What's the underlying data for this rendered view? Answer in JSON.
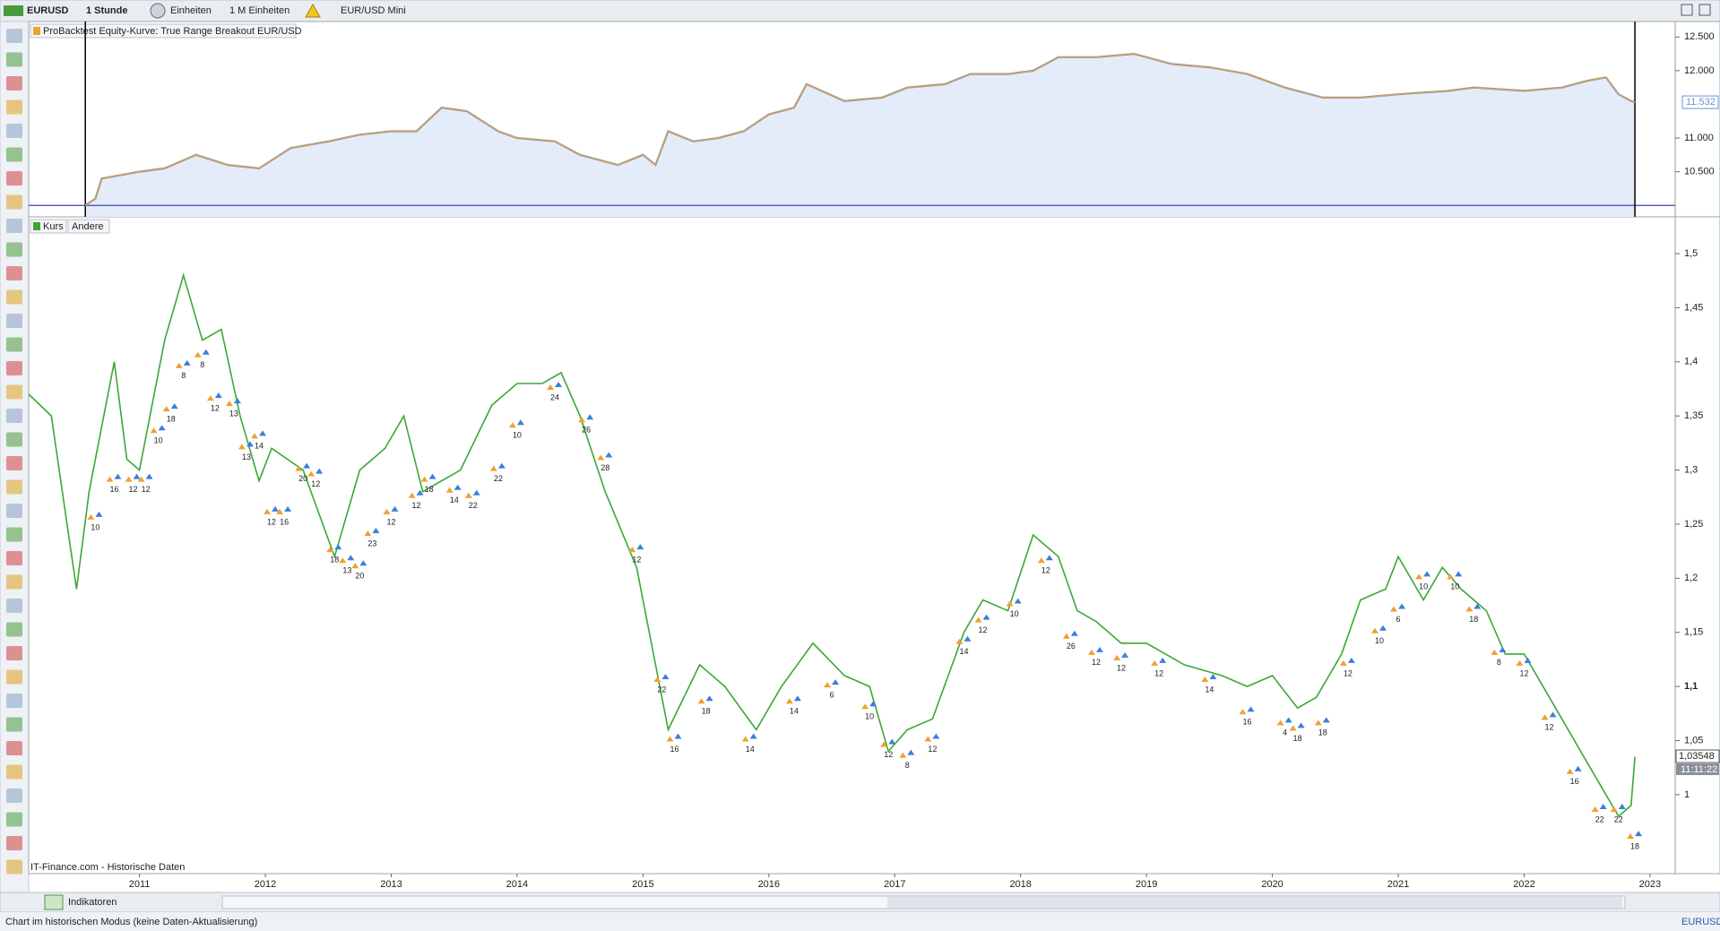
{
  "toolbar": {
    "symbol": "EURUSD",
    "interval": "1 Stunde",
    "units": "Einheiten",
    "amount": "1 M Einheiten",
    "instrument": "EUR/USD Mini"
  },
  "chart_data": [
    {
      "type": "line",
      "title": "ProBacktest Equity-Kurve: True Range Breakout EUR/USD",
      "color": "#f0a030",
      "fill": "#e4ecfa",
      "x": [
        2010.57,
        2010.65,
        2010.7,
        2010.85,
        2011.0,
        2011.2,
        2011.45,
        2011.7,
        2011.95,
        2012.2,
        2012.5,
        2012.75,
        2013.0,
        2013.2,
        2013.4,
        2013.6,
        2013.85,
        2014.0,
        2014.3,
        2014.5,
        2014.8,
        2015.0,
        2015.1,
        2015.2,
        2015.4,
        2015.6,
        2015.8,
        2016.0,
        2016.2,
        2016.3,
        2016.6,
        2016.9,
        2017.1,
        2017.4,
        2017.6,
        2017.9,
        2018.1,
        2018.3,
        2018.6,
        2018.9,
        2019.2,
        2019.5,
        2019.8,
        2020.1,
        2020.4,
        2020.7,
        2021.0,
        2021.4,
        2021.6,
        2022.0,
        2022.3,
        2022.5,
        2022.65,
        2022.75,
        2022.85,
        2022.88
      ],
      "values": [
        10.0,
        10.1,
        10.4,
        10.45,
        10.5,
        10.55,
        10.75,
        10.6,
        10.55,
        10.85,
        10.95,
        11.05,
        11.1,
        11.1,
        11.45,
        11.4,
        11.1,
        11.0,
        10.95,
        10.75,
        10.6,
        10.75,
        10.6,
        11.1,
        10.95,
        11.0,
        11.1,
        11.35,
        11.45,
        11.8,
        11.55,
        11.6,
        11.75,
        11.8,
        11.95,
        11.95,
        12.0,
        12.2,
        12.2,
        12.25,
        12.1,
        12.05,
        11.95,
        11.75,
        11.6,
        11.6,
        11.65,
        11.7,
        11.75,
        11.7,
        11.75,
        11.85,
        11.9,
        11.65,
        11.55,
        11.53
      ],
      "xlim": [
        2010.12,
        2023.2
      ],
      "ylim": [
        9.83,
        12.73
      ],
      "yticks": [
        {
          "value": 10.5,
          "label": "10.500"
        },
        {
          "value": 11,
          "label": "11.000"
        },
        {
          "value": 12,
          "label": "12.000"
        },
        {
          "value": 12.5,
          "label": "12.500"
        }
      ],
      "xmarkers": [
        2010.57,
        2022.88
      ],
      "baseline": 10,
      "last": 11.532
    },
    {
      "type": "line",
      "tabs": [
        "Kurs",
        "Andere"
      ],
      "color": "#3aa835",
      "x": [
        2010.12,
        2010.3,
        2010.45,
        2010.5,
        2010.6,
        2010.8,
        2010.9,
        2011.0,
        2011.2,
        2011.35,
        2011.5,
        2011.65,
        2011.8,
        2011.95,
        2012.05,
        2012.3,
        2012.55,
        2012.75,
        2012.95,
        2013.1,
        2013.25,
        2013.55,
        2013.8,
        2014.0,
        2014.2,
        2014.35,
        2014.5,
        2014.7,
        2014.95,
        2015.1,
        2015.2,
        2015.45,
        2015.65,
        2015.9,
        2016.1,
        2016.35,
        2016.6,
        2016.8,
        2016.95,
        2017.1,
        2017.3,
        2017.55,
        2017.7,
        2017.9,
        2018.1,
        2018.3,
        2018.45,
        2018.6,
        2018.8,
        2019.0,
        2019.3,
        2019.6,
        2019.8,
        2020.0,
        2020.2,
        2020.35,
        2020.55,
        2020.7,
        2020.9,
        2021.0,
        2021.2,
        2021.35,
        2021.5,
        2021.7,
        2021.85,
        2022.0,
        2022.2,
        2022.4,
        2022.6,
        2022.75,
        2022.85,
        2022.88
      ],
      "values": [
        1.37,
        1.35,
        1.23,
        1.19,
        1.28,
        1.4,
        1.31,
        1.3,
        1.42,
        1.48,
        1.42,
        1.43,
        1.35,
        1.29,
        1.32,
        1.3,
        1.22,
        1.3,
        1.32,
        1.35,
        1.28,
        1.3,
        1.36,
        1.38,
        1.38,
        1.39,
        1.35,
        1.28,
        1.21,
        1.12,
        1.06,
        1.12,
        1.1,
        1.06,
        1.1,
        1.14,
        1.11,
        1.1,
        1.04,
        1.06,
        1.07,
        1.15,
        1.18,
        1.17,
        1.24,
        1.22,
        1.17,
        1.16,
        1.14,
        1.14,
        1.12,
        1.11,
        1.1,
        1.11,
        1.08,
        1.09,
        1.13,
        1.18,
        1.19,
        1.22,
        1.18,
        1.21,
        1.19,
        1.17,
        1.13,
        1.13,
        1.09,
        1.05,
        1.01,
        0.98,
        0.99,
        1.035
      ],
      "xlim": [
        2010.12,
        2023.2
      ],
      "ylim": [
        0.927,
        1.534
      ],
      "yticks": [
        1,
        {
          "value": 1.05,
          "label": "1,05"
        },
        {
          "value": 1.1,
          "label": "1,1"
        },
        {
          "value": 1.15,
          "label": "1,15"
        },
        {
          "value": 1.2,
          "label": "1,2"
        },
        {
          "value": 1.25,
          "label": "1,25"
        },
        {
          "value": 1.3,
          "label": "1,3"
        },
        {
          "value": 1.35,
          "label": "1,35"
        },
        {
          "value": 1.4,
          "label": "1,4"
        },
        {
          "value": 1.45,
          "label": "1,45"
        },
        {
          "value": 1.5,
          "label": "1,5"
        }
      ],
      "xticks": [
        2011,
        2012,
        2013,
        2014,
        2015,
        2016,
        2017,
        2018,
        2019,
        2020,
        2021,
        2022,
        2023
      ],
      "last": {
        "value": 1.03548,
        "label": "1,03548"
      },
      "time": "11:11:22",
      "signals": [
        {
          "x": 2010.65,
          "y": 1.255,
          "n": 10
        },
        {
          "x": 2010.8,
          "y": 1.29,
          "n": 16
        },
        {
          "x": 2010.95,
          "y": 1.29,
          "n": 12
        },
        {
          "x": 2011.05,
          "y": 1.29,
          "n": 12
        },
        {
          "x": 2011.15,
          "y": 1.335,
          "n": 10
        },
        {
          "x": 2011.25,
          "y": 1.355,
          "n": 18
        },
        {
          "x": 2011.35,
          "y": 1.395,
          "n": 8
        },
        {
          "x": 2011.5,
          "y": 1.405,
          "n": 8
        },
        {
          "x": 2011.6,
          "y": 1.365,
          "n": 12
        },
        {
          "x": 2011.75,
          "y": 1.36,
          "n": 13
        },
        {
          "x": 2011.85,
          "y": 1.32,
          "n": 13
        },
        {
          "x": 2011.95,
          "y": 1.33,
          "n": 14
        },
        {
          "x": 2012.05,
          "y": 1.26,
          "n": 12
        },
        {
          "x": 2012.15,
          "y": 1.26,
          "n": 16
        },
        {
          "x": 2012.3,
          "y": 1.3,
          "n": 20
        },
        {
          "x": 2012.4,
          "y": 1.295,
          "n": 12
        },
        {
          "x": 2012.55,
          "y": 1.225,
          "n": 18
        },
        {
          "x": 2012.65,
          "y": 1.215,
          "n": 13
        },
        {
          "x": 2012.75,
          "y": 1.21,
          "n": 20
        },
        {
          "x": 2012.85,
          "y": 1.24,
          "n": 23
        },
        {
          "x": 2013.0,
          "y": 1.26,
          "n": 12
        },
        {
          "x": 2013.2,
          "y": 1.275,
          "n": 12
        },
        {
          "x": 2013.3,
          "y": 1.29,
          "n": 18
        },
        {
          "x": 2013.5,
          "y": 1.28,
          "n": 14
        },
        {
          "x": 2013.65,
          "y": 1.275,
          "n": 22
        },
        {
          "x": 2013.85,
          "y": 1.3,
          "n": 22
        },
        {
          "x": 2014.0,
          "y": 1.34,
          "n": 10
        },
        {
          "x": 2014.3,
          "y": 1.375,
          "n": 24
        },
        {
          "x": 2014.55,
          "y": 1.345,
          "n": 26
        },
        {
          "x": 2014.7,
          "y": 1.31,
          "n": 28
        },
        {
          "x": 2014.95,
          "y": 1.225,
          "n": 12
        },
        {
          "x": 2015.15,
          "y": 1.105,
          "n": 22
        },
        {
          "x": 2015.25,
          "y": 1.05,
          "n": 16
        },
        {
          "x": 2015.5,
          "y": 1.085,
          "n": 18
        },
        {
          "x": 2015.85,
          "y": 1.05,
          "n": 14
        },
        {
          "x": 2016.2,
          "y": 1.085,
          "n": 14
        },
        {
          "x": 2016.5,
          "y": 1.1,
          "n": 6
        },
        {
          "x": 2016.8,
          "y": 1.08,
          "n": 10
        },
        {
          "x": 2016.95,
          "y": 1.045,
          "n": 12
        },
        {
          "x": 2017.1,
          "y": 1.035,
          "n": 8
        },
        {
          "x": 2017.3,
          "y": 1.05,
          "n": 12
        },
        {
          "x": 2017.55,
          "y": 1.14,
          "n": 14
        },
        {
          "x": 2017.7,
          "y": 1.16,
          "n": 12
        },
        {
          "x": 2017.95,
          "y": 1.175,
          "n": 10
        },
        {
          "x": 2018.2,
          "y": 1.215,
          "n": 12
        },
        {
          "x": 2018.4,
          "y": 1.145,
          "n": 26
        },
        {
          "x": 2018.6,
          "y": 1.13,
          "n": 12
        },
        {
          "x": 2018.8,
          "y": 1.125,
          "n": 12
        },
        {
          "x": 2019.1,
          "y": 1.12,
          "n": 12
        },
        {
          "x": 2019.5,
          "y": 1.105,
          "n": 14
        },
        {
          "x": 2019.8,
          "y": 1.075,
          "n": 16
        },
        {
          "x": 2020.1,
          "y": 1.065,
          "n": 4
        },
        {
          "x": 2020.2,
          "y": 1.06,
          "n": 18
        },
        {
          "x": 2020.4,
          "y": 1.065,
          "n": 18
        },
        {
          "x": 2020.6,
          "y": 1.12,
          "n": 12
        },
        {
          "x": 2020.85,
          "y": 1.15,
          "n": 10
        },
        {
          "x": 2021.0,
          "y": 1.17,
          "n": 6
        },
        {
          "x": 2021.2,
          "y": 1.2,
          "n": 10
        },
        {
          "x": 2021.45,
          "y": 1.2,
          "n": 10
        },
        {
          "x": 2021.6,
          "y": 1.17,
          "n": 18
        },
        {
          "x": 2021.8,
          "y": 1.13,
          "n": 8
        },
        {
          "x": 2022.0,
          "y": 1.12,
          "n": 12
        },
        {
          "x": 2022.2,
          "y": 1.07,
          "n": 12
        },
        {
          "x": 2022.4,
          "y": 1.02,
          "n": 16
        },
        {
          "x": 2022.6,
          "y": 0.985,
          "n": 22
        },
        {
          "x": 2022.75,
          "y": 0.985,
          "n": 22
        },
        {
          "x": 2022.88,
          "y": 0.96,
          "n": 18
        }
      ]
    }
  ],
  "source": "IT-Finance.com - Historische Daten",
  "bottom_bar": {
    "indicators": "Indikatoren",
    "symbol": "EURUSD"
  },
  "status": "Chart im historischen Modus (keine Daten-Aktualisierung)"
}
